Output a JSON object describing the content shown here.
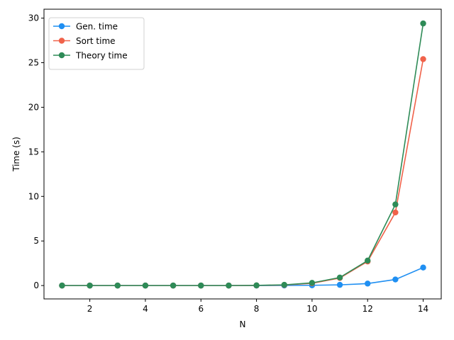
{
  "chart_data": {
    "type": "line",
    "title": "",
    "xlabel": "N",
    "ylabel": "Time (s)",
    "xlim": [
      0.35,
      14.65
    ],
    "ylim": [
      -1.5,
      31.0
    ],
    "xticks": [
      2,
      4,
      6,
      8,
      10,
      12,
      14
    ],
    "yticks": [
      0,
      5,
      10,
      15,
      20,
      25,
      30
    ],
    "grid": false,
    "legend_position": "top-left",
    "x": [
      1,
      2,
      3,
      4,
      5,
      6,
      7,
      8,
      9,
      10,
      11,
      12,
      13,
      14
    ],
    "series": [
      {
        "name": "Gen. time",
        "color": "#1f8ff2",
        "marker": "circle",
        "values": [
          0.0,
          0.0,
          0.0,
          0.0,
          0.0,
          0.0,
          0.0,
          0.0,
          0.01,
          0.03,
          0.08,
          0.22,
          0.68,
          2.02
        ]
      },
      {
        "name": "Sort time",
        "color": "#f0624a",
        "marker": "circle",
        "values": [
          0.0,
          0.0,
          0.0,
          0.0,
          0.0,
          0.0,
          0.0,
          0.01,
          0.06,
          0.25,
          0.85,
          2.7,
          8.2,
          25.4
        ]
      },
      {
        "name": "Theory time",
        "color": "#2e8b57",
        "marker": "circle",
        "values": [
          0.0,
          0.0,
          0.0,
          0.0,
          0.0,
          0.0,
          0.0,
          0.02,
          0.08,
          0.3,
          0.9,
          2.8,
          9.1,
          29.4
        ]
      }
    ]
  }
}
